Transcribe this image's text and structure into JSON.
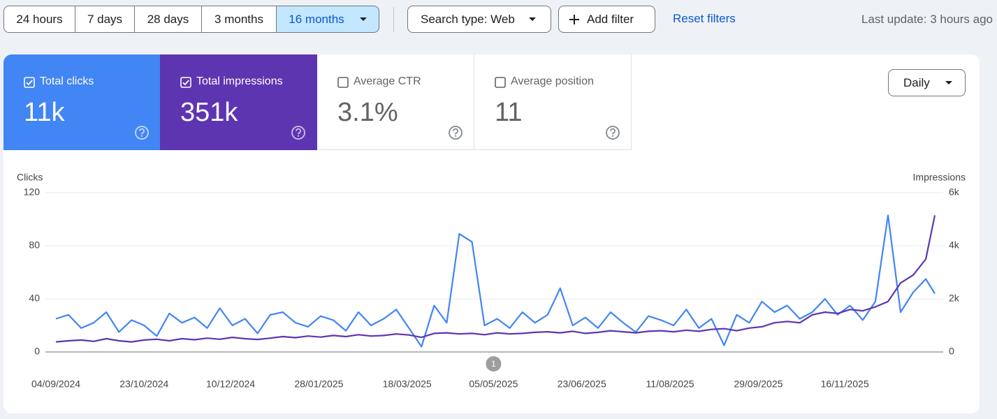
{
  "toolbar": {
    "ranges": [
      "24 hours",
      "7 days",
      "28 days",
      "3 months",
      "16 months"
    ],
    "selected_range": 4,
    "search_type": "Search type: Web",
    "add_filter": "Add filter",
    "reset": "Reset filters",
    "last_update": "Last update: 3 hours ago"
  },
  "metrics": [
    {
      "label": "Total clicks",
      "value": "11k",
      "checked": true,
      "color": "#4285f4"
    },
    {
      "label": "Total impressions",
      "value": "351k",
      "checked": true,
      "color": "#5e35b1"
    },
    {
      "label": "Average CTR",
      "value": "3.1%",
      "checked": false,
      "color": "#ffffff"
    },
    {
      "label": "Average position",
      "value": "11",
      "checked": false,
      "color": "#ffffff"
    }
  ],
  "granularity": "Daily",
  "chart_data": {
    "type": "line",
    "y_label": "Clicks",
    "y2_label": "Impressions",
    "x": [
      "04/09/2024",
      "11/09/2024",
      "18/09/2024",
      "25/09/2024",
      "02/10/2024",
      "09/10/2024",
      "16/10/2024",
      "23/10/2024",
      "30/10/2024",
      "06/11/2024",
      "13/11/2024",
      "20/11/2024",
      "27/11/2024",
      "04/12/2024",
      "11/12/2024",
      "18/12/2024",
      "25/12/2024",
      "01/01/2025",
      "08/01/2025",
      "15/01/2025",
      "22/01/2025",
      "29/01/2025",
      "05/02/2025",
      "12/02/2025",
      "19/02/2025",
      "26/02/2025",
      "05/03/2025",
      "12/03/2025",
      "19/03/2025",
      "26/03/2025",
      "02/04/2025",
      "09/04/2025",
      "16/04/2025",
      "23/04/2025",
      "30/04/2025",
      "07/05/2025",
      "14/05/2025",
      "21/05/2025",
      "28/05/2025",
      "04/06/2025",
      "11/06/2025",
      "18/06/2025",
      "25/06/2025",
      "02/07/2025",
      "09/07/2025",
      "16/07/2025",
      "23/07/2025",
      "30/07/2025",
      "06/08/2025",
      "13/08/2025",
      "20/08/2025",
      "27/08/2025",
      "03/09/2025",
      "10/09/2025",
      "17/09/2025",
      "24/09/2025",
      "01/10/2025",
      "08/10/2025",
      "15/10/2025",
      "22/10/2025",
      "29/10/2025",
      "05/11/2025",
      "12/11/2025",
      "19/11/2025",
      "26/11/2025",
      "03/12/2025",
      "10/12/2025",
      "17/12/2025",
      "24/12/2025",
      "31/12/2025",
      "05/01/2026"
    ],
    "xticks": [
      "04/09/2024",
      "23/10/2024",
      "10/12/2024",
      "28/01/2025",
      "18/03/2025",
      "05/05/2025",
      "23/06/2025",
      "11/08/2025",
      "29/09/2025",
      "16/11/2025"
    ],
    "ylim": [
      0,
      120
    ],
    "yticks": [
      0,
      40,
      80,
      120
    ],
    "y2lim": [
      0,
      6000
    ],
    "y2ticks": [
      0,
      {
        "value": 2000,
        "label": "2k"
      },
      {
        "value": 4000,
        "label": "4k"
      },
      {
        "value": 6000,
        "label": "6k"
      }
    ],
    "grid": true,
    "series": [
      {
        "name": "Clicks",
        "color": "#4285f4",
        "values": [
          25,
          28,
          18,
          22,
          30,
          15,
          24,
          20,
          12,
          29,
          22,
          26,
          18,
          33,
          20,
          25,
          14,
          28,
          30,
          22,
          19,
          27,
          24,
          16,
          30,
          20,
          25,
          32,
          18,
          4,
          35,
          22,
          89,
          83,
          20,
          25,
          18,
          30,
          22,
          28,
          48,
          20,
          26,
          18,
          30,
          22,
          15,
          27,
          24,
          20,
          32,
          18,
          25,
          5,
          28,
          22,
          38,
          30,
          35,
          25,
          30,
          40,
          28,
          35,
          24,
          38,
          103,
          30,
          45,
          55,
          44
        ]
      },
      {
        "name": "Impressions",
        "color": "#5e35b1",
        "axis": "y2",
        "values": [
          380,
          420,
          450,
          400,
          500,
          420,
          380,
          450,
          480,
          420,
          500,
          460,
          520,
          480,
          550,
          500,
          470,
          520,
          580,
          540,
          600,
          560,
          620,
          580,
          650,
          600,
          620,
          680,
          640,
          550,
          700,
          720,
          680,
          700,
          650,
          720,
          680,
          700,
          740,
          760,
          720,
          780,
          700,
          740,
          800,
          760,
          720,
          780,
          800,
          760,
          820,
          780,
          850,
          880,
          800,
          900,
          950,
          1100,
          1150,
          1100,
          1400,
          1500,
          1450,
          1600,
          1550,
          1700,
          1900,
          2600,
          2900,
          3500,
          5150
        ]
      }
    ],
    "annotations": [
      {
        "x": "05/05/2025",
        "label": "1"
      }
    ]
  }
}
